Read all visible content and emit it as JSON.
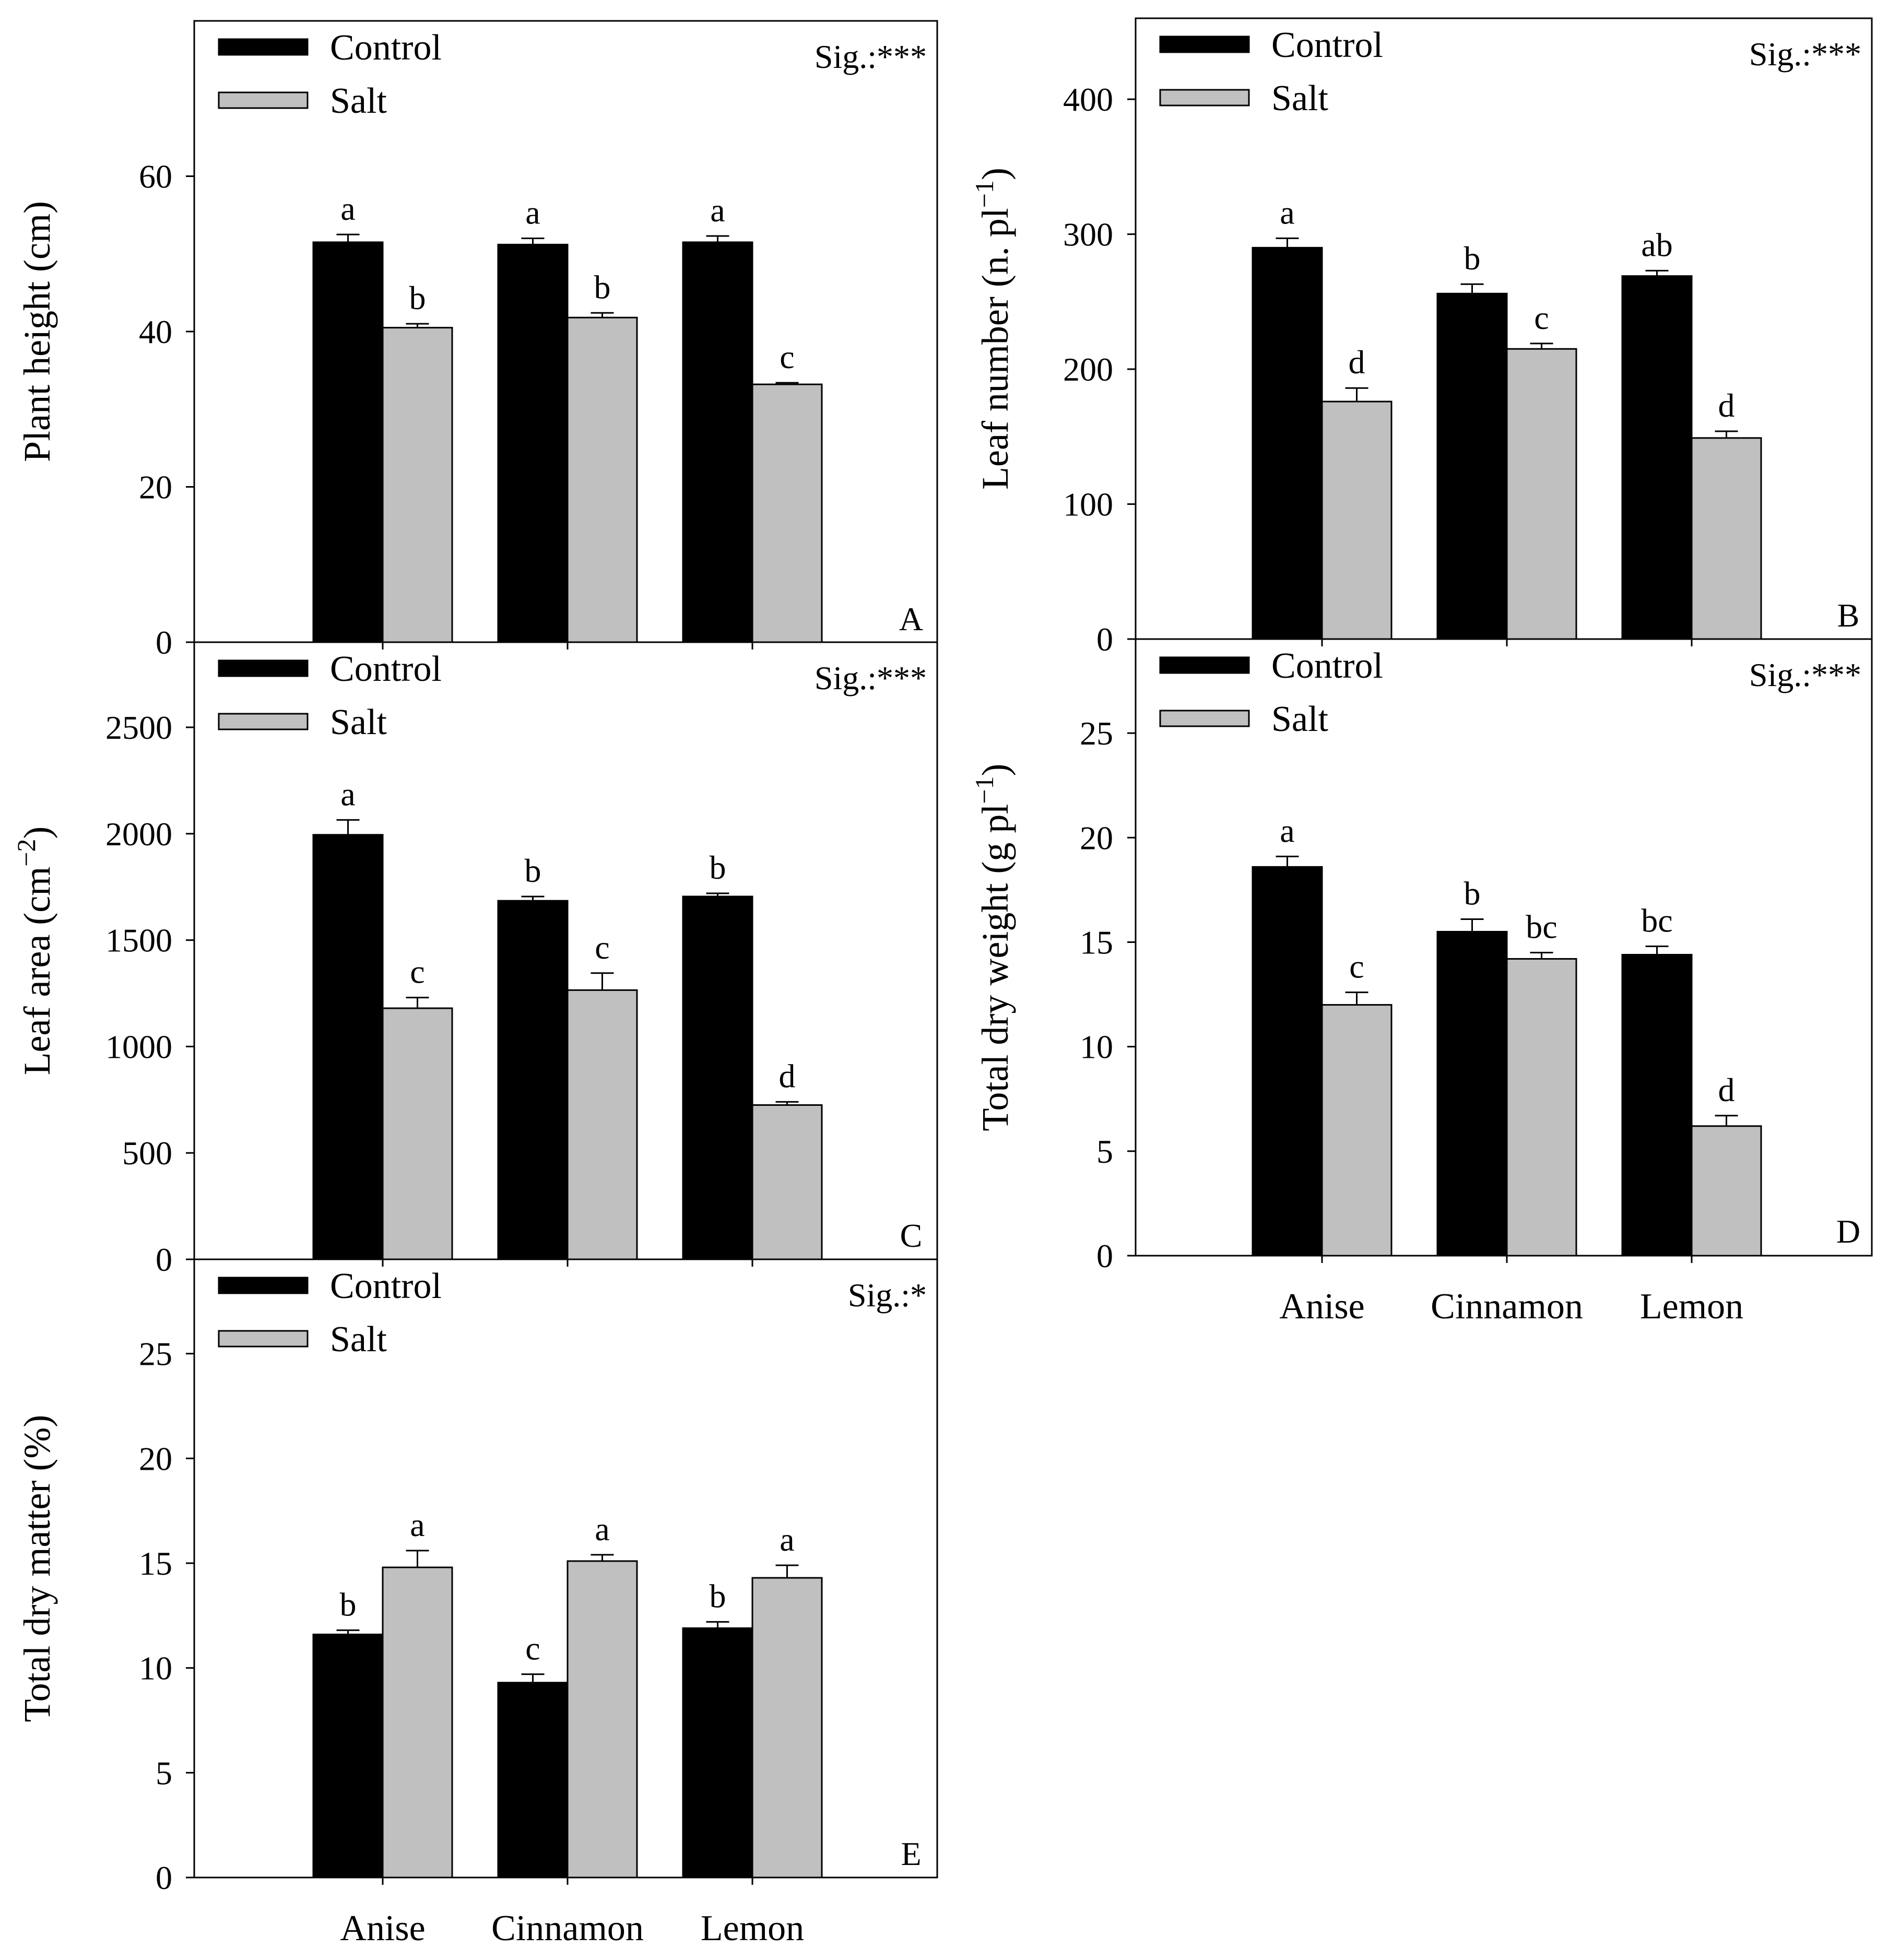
{
  "colors": {
    "control": "#000000",
    "salt": "#c0c0c0",
    "axis": "#000000"
  },
  "chart_data": [
    {
      "id": "A",
      "type": "bar",
      "panel_label": "A",
      "title": "",
      "xlabel": "",
      "ylabel": "Plant height (cm)",
      "ylabel_parts": {
        "pre": "Plant height (cm)",
        "sup": "",
        "post": ""
      },
      "significance": "Sig.:***",
      "categories": [
        "Anise",
        "Cinnamon",
        "Lemon"
      ],
      "show_x_ticklabels": false,
      "ylim": [
        0,
        80
      ],
      "yticks": [
        0,
        20,
        40,
        60
      ],
      "legend": [
        "Control",
        "Salt"
      ],
      "series": [
        {
          "name": "Control",
          "values": [
            51.5,
            51.2,
            51.5
          ],
          "errors": [
            1.0,
            0.8,
            0.8
          ],
          "letters": [
            "a",
            "a",
            "a"
          ]
        },
        {
          "name": "Salt",
          "values": [
            40.5,
            41.8,
            33.2
          ],
          "errors": [
            0.5,
            0.6,
            0.2
          ],
          "letters": [
            "b",
            "b",
            "c"
          ]
        }
      ]
    },
    {
      "id": "B",
      "type": "bar",
      "panel_label": "B",
      "title": "",
      "xlabel": "",
      "ylabel": "Leaf number (n. pl−1)",
      "ylabel_parts": {
        "pre": "Leaf number (n. pl",
        "sup": "−1",
        "post": ")"
      },
      "significance": "Sig.:***",
      "categories": [
        "Anise",
        "Cinnamon",
        "Lemon"
      ],
      "show_x_ticklabels": false,
      "ylim": [
        0,
        460
      ],
      "yticks": [
        0,
        100,
        200,
        300,
        400
      ],
      "legend": [
        "Control",
        "Salt"
      ],
      "series": [
        {
          "name": "Control",
          "values": [
            290,
            256,
            269
          ],
          "errors": [
            7,
            7,
            4
          ],
          "letters": [
            "a",
            "b",
            "ab"
          ]
        },
        {
          "name": "Salt",
          "values": [
            176,
            215,
            149
          ],
          "errors": [
            10,
            4,
            5
          ],
          "letters": [
            "d",
            "c",
            "d"
          ]
        }
      ]
    },
    {
      "id": "C",
      "type": "bar",
      "panel_label": "C",
      "title": "",
      "xlabel": "",
      "ylabel": "Leaf area (cm−2)",
      "ylabel_parts": {
        "pre": "Leaf area (cm",
        "sup": "−2",
        "post": ")"
      },
      "significance": "Sig.:***",
      "categories": [
        "Anise",
        "Cinnamon",
        "Lemon"
      ],
      "show_x_ticklabels": false,
      "ylim": [
        0,
        2900
      ],
      "yticks": [
        0,
        500,
        1000,
        1500,
        2000,
        2500
      ],
      "legend": [
        "Control",
        "Salt"
      ],
      "series": [
        {
          "name": "Control",
          "values": [
            1995,
            1685,
            1705
          ],
          "errors": [
            70,
            20,
            15
          ],
          "letters": [
            "a",
            "b",
            "b"
          ]
        },
        {
          "name": "Salt",
          "values": [
            1180,
            1265,
            725
          ],
          "errors": [
            50,
            80,
            15
          ],
          "letters": [
            "c",
            "c",
            "d"
          ]
        }
      ]
    },
    {
      "id": "D",
      "type": "bar",
      "panel_label": "D",
      "title": "",
      "xlabel": "",
      "ylabel": "Total dry weight (g pl−1)",
      "ylabel_parts": {
        "pre": "Total dry weight (g pl",
        "sup": "−1",
        "post": ")"
      },
      "significance": "Sig.:***",
      "categories": [
        "Anise",
        "Cinnamon",
        "Lemon"
      ],
      "show_x_ticklabels": true,
      "ylim": [
        0,
        29.5
      ],
      "yticks": [
        0,
        5,
        10,
        15,
        20,
        25
      ],
      "legend": [
        "Control",
        "Salt"
      ],
      "series": [
        {
          "name": "Control",
          "values": [
            18.6,
            15.5,
            14.4
          ],
          "errors": [
            0.5,
            0.6,
            0.4
          ],
          "letters": [
            "a",
            "b",
            "bc"
          ]
        },
        {
          "name": "Salt",
          "values": [
            12.0,
            14.2,
            6.2
          ],
          "errors": [
            0.6,
            0.3,
            0.5
          ],
          "letters": [
            "c",
            "bc",
            "d"
          ]
        }
      ]
    },
    {
      "id": "E",
      "type": "bar",
      "panel_label": "E",
      "title": "",
      "xlabel": "",
      "ylabel": "Total dry matter (%)",
      "ylabel_parts": {
        "pre": "Total dry matter (%)",
        "sup": "",
        "post": ""
      },
      "significance": "Sig.:*",
      "categories": [
        "Anise",
        "Cinnamon",
        "Lemon"
      ],
      "show_x_ticklabels": true,
      "ylim": [
        0,
        29.5
      ],
      "yticks": [
        0,
        5,
        10,
        15,
        20,
        25
      ],
      "legend": [
        "Control",
        "Salt"
      ],
      "series": [
        {
          "name": "Control",
          "values": [
            11.6,
            9.3,
            11.9
          ],
          "errors": [
            0.2,
            0.4,
            0.3
          ],
          "letters": [
            "b",
            "c",
            "b"
          ]
        },
        {
          "name": "Salt",
          "values": [
            14.8,
            15.1,
            14.3
          ],
          "errors": [
            0.8,
            0.3,
            0.6
          ],
          "letters": [
            "a",
            "a",
            "a"
          ]
        }
      ]
    }
  ]
}
